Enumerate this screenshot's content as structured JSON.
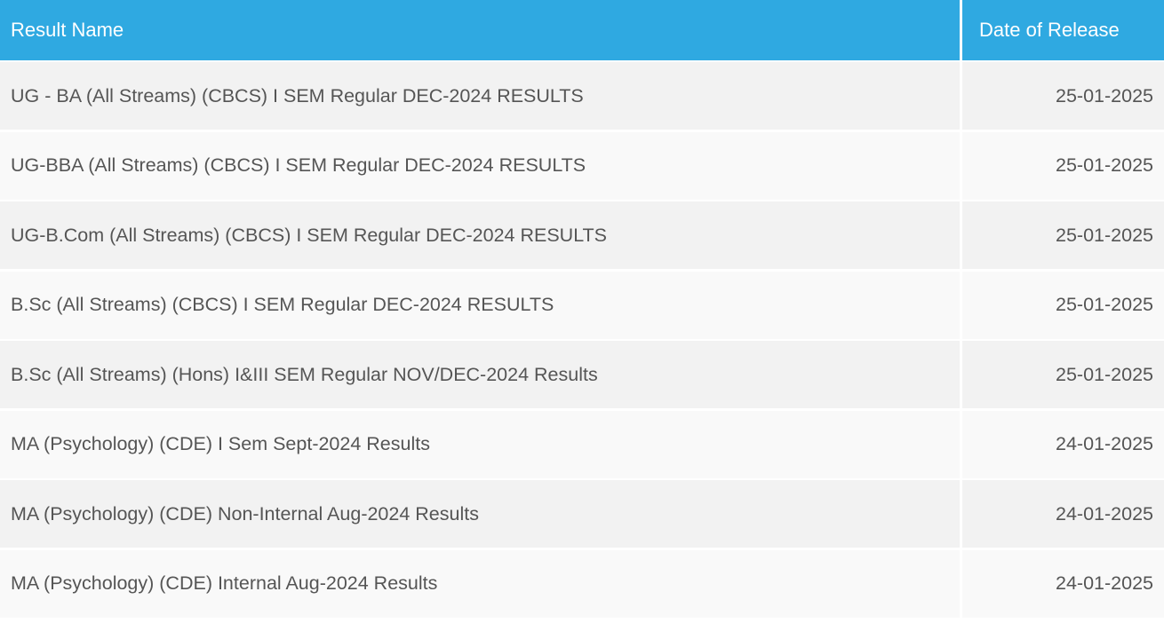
{
  "table": {
    "headers": {
      "name": "Result Name",
      "date": "Date of Release"
    },
    "header_color": "#2fa9e1",
    "rows": [
      {
        "name": "UG - BA (All Streams) (CBCS) I SEM Regular DEC-2024 RESULTS",
        "date": "25-01-2025"
      },
      {
        "name": "UG-BBA (All Streams) (CBCS) I SEM Regular DEC-2024 RESULTS",
        "date": "25-01-2025"
      },
      {
        "name": "UG-B.Com (All Streams) (CBCS) I SEM Regular DEC-2024 RESULTS",
        "date": "25-01-2025"
      },
      {
        "name": "B.Sc (All Streams) (CBCS) I SEM Regular DEC-2024 RESULTS",
        "date": "25-01-2025"
      },
      {
        "name": "B.Sc (All Streams) (Hons) I&III SEM Regular NOV/DEC-2024 Results",
        "date": "25-01-2025"
      },
      {
        "name": "MA (Psychology) (CDE) I Sem Sept-2024 Results",
        "date": "24-01-2025"
      },
      {
        "name": "MA (Psychology) (CDE) Non-Internal Aug-2024 Results",
        "date": "24-01-2025"
      },
      {
        "name": "MA (Psychology) (CDE) Internal Aug-2024 Results",
        "date": "24-01-2025"
      }
    ]
  }
}
